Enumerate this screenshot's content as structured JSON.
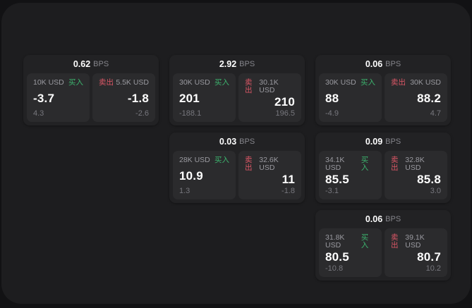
{
  "colors": {
    "backdrop": "#121214",
    "screen_bg": "#1d1d1f",
    "card_bg": "#222224",
    "panel_bg": "#2b2b2d",
    "buy_green": "#3cb46e",
    "sell_red": "#dc5766"
  },
  "cards": [
    {
      "bps_value": "0.62",
      "bps_unit": "BPS",
      "buy": {
        "amount": "10K USD",
        "side_label": "买入",
        "value": "-3.7",
        "sub_value": "4.3"
      },
      "sell": {
        "amount": "5.5K USD",
        "side_label": "卖出",
        "value": "-1.8",
        "sub_value": "-2.6"
      }
    },
    {
      "bps_value": "2.92",
      "bps_unit": "BPS",
      "buy": {
        "amount": "30K USD",
        "side_label": "买入",
        "value": "201",
        "sub_value": "-188.1"
      },
      "sell": {
        "amount": "30.1K USD",
        "side_label": "卖出",
        "value": "210",
        "sub_value": "196.5"
      }
    },
    {
      "bps_value": "0.06",
      "bps_unit": "BPS",
      "buy": {
        "amount": "30K USD",
        "side_label": "买入",
        "value": "88",
        "sub_value": "-4.9"
      },
      "sell": {
        "amount": "30K USD",
        "side_label": "卖出",
        "value": "88.2",
        "sub_value": "4.7"
      }
    },
    {
      "bps_value": "0.03",
      "bps_unit": "BPS",
      "buy": {
        "amount": "28K USD",
        "side_label": "买入",
        "value": "10.9",
        "sub_value": "1.3"
      },
      "sell": {
        "amount": "32.6K USD",
        "side_label": "卖出",
        "value": "11",
        "sub_value": "-1.8"
      }
    },
    {
      "bps_value": "0.09",
      "bps_unit": "BPS",
      "buy": {
        "amount": "34.1K USD",
        "side_label": "买入",
        "value": "85.5",
        "sub_value": "-3.1"
      },
      "sell": {
        "amount": "32.8K USD",
        "side_label": "卖出",
        "value": "85.8",
        "sub_value": "3.0"
      }
    },
    {
      "bps_value": "0.06",
      "bps_unit": "BPS",
      "buy": {
        "amount": "31.8K USD",
        "side_label": "买入",
        "value": "80.5",
        "sub_value": "-10.8"
      },
      "sell": {
        "amount": "39.1K USD",
        "side_label": "卖出",
        "value": "80.7",
        "sub_value": "10.2"
      }
    }
  ]
}
